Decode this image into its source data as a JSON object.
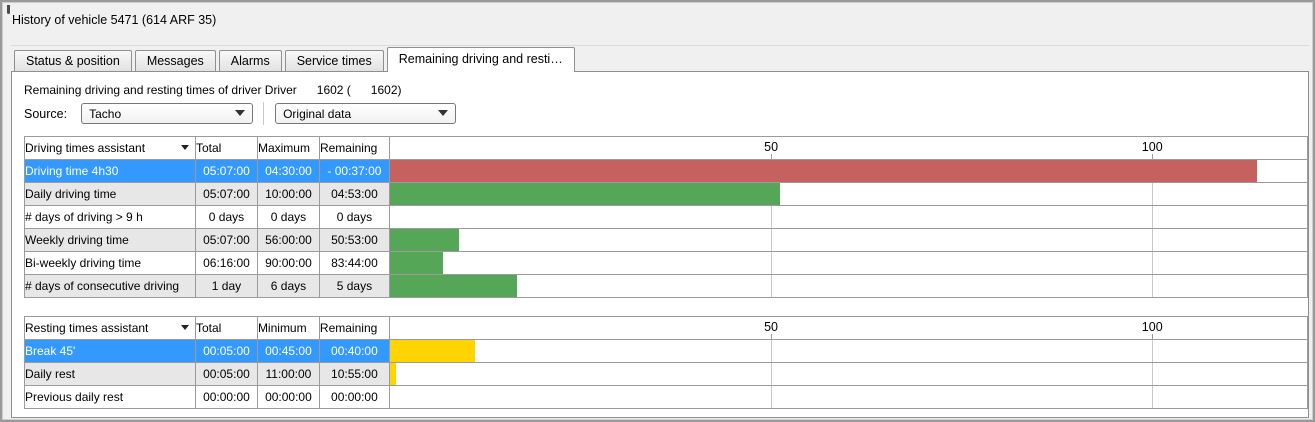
{
  "window": {
    "title": "History of vehicle 5471 (614 ARF 35)"
  },
  "tabs": [
    {
      "label": "Status & position",
      "active": false
    },
    {
      "label": "Messages",
      "active": false
    },
    {
      "label": "Alarms",
      "active": false
    },
    {
      "label": "Service times",
      "active": false
    },
    {
      "label": "Remaining driving and resti…",
      "active": true
    }
  ],
  "driver_line": "Remaining driving and resting times of driver Driver      1602 (      1602)",
  "source": {
    "label": "Source:",
    "tacho_value": "Tacho",
    "data_value": "Original data"
  },
  "chart_axis": {
    "ticks": [
      50,
      100
    ],
    "max": 120.3,
    "unit": "percent of allowed time"
  },
  "colors": {
    "selection_blue": "#3399ff",
    "negative_red": "#e8003a",
    "bar_red": "#c5615f",
    "bar_green": "#55a757",
    "bar_yellow": "#ffd400",
    "alt_row_gray": "#e7e7e7"
  },
  "driving_table": {
    "columns": [
      "Driving times assistant",
      "Total",
      "Maximum",
      "Remaining"
    ],
    "rows": [
      {
        "label": "Driving time 4h30",
        "total": "05:07:00",
        "limit": "04:30:00",
        "remaining": "- 00:37:00",
        "negative": true,
        "selected": true,
        "bar_pct": 113.7,
        "bar_color": "#c5615f"
      },
      {
        "label": "Daily driving time",
        "total": "05:07:00",
        "limit": "10:00:00",
        "remaining": "04:53:00",
        "negative": false,
        "selected": false,
        "bar_pct": 51.2,
        "bar_color": "#55a757"
      },
      {
        "label": "# days of driving > 9 h",
        "total": "0 days",
        "limit": "0 days",
        "remaining": "0 days",
        "negative": false,
        "selected": false,
        "bar_pct": 0,
        "bar_color": "#55a757"
      },
      {
        "label": "Weekly driving time",
        "total": "05:07:00",
        "limit": "56:00:00",
        "remaining": "50:53:00",
        "negative": false,
        "selected": false,
        "bar_pct": 9.1,
        "bar_color": "#55a757"
      },
      {
        "label": "Bi-weekly driving time",
        "total": "06:16:00",
        "limit": "90:00:00",
        "remaining": "83:44:00",
        "negative": false,
        "selected": false,
        "bar_pct": 7.0,
        "bar_color": "#55a757"
      },
      {
        "label": "# days of consecutive driving",
        "total": "1 day",
        "limit": "6 days",
        "remaining": "5 days",
        "negative": false,
        "selected": false,
        "bar_pct": 16.7,
        "bar_color": "#55a757"
      }
    ]
  },
  "resting_table": {
    "columns": [
      "Resting times assistant",
      "Total",
      "Minimum",
      "Remaining"
    ],
    "rows": [
      {
        "label": "Break 45'",
        "total": "00:05:00",
        "limit": "00:45:00",
        "remaining": "00:40:00",
        "negative": false,
        "selected": true,
        "bar_pct": 11.1,
        "bar_color": "#ffd400"
      },
      {
        "label": "Daily rest",
        "total": "00:05:00",
        "limit": "11:00:00",
        "remaining": "10:55:00",
        "negative": false,
        "selected": false,
        "bar_pct": 0.76,
        "bar_color": "#ffd400"
      },
      {
        "label": "Previous daily rest",
        "total": "00:00:00",
        "limit": "00:00:00",
        "remaining": "00:00:00",
        "negative": false,
        "selected": false,
        "bar_pct": 0,
        "bar_color": "#ffd400"
      }
    ]
  }
}
